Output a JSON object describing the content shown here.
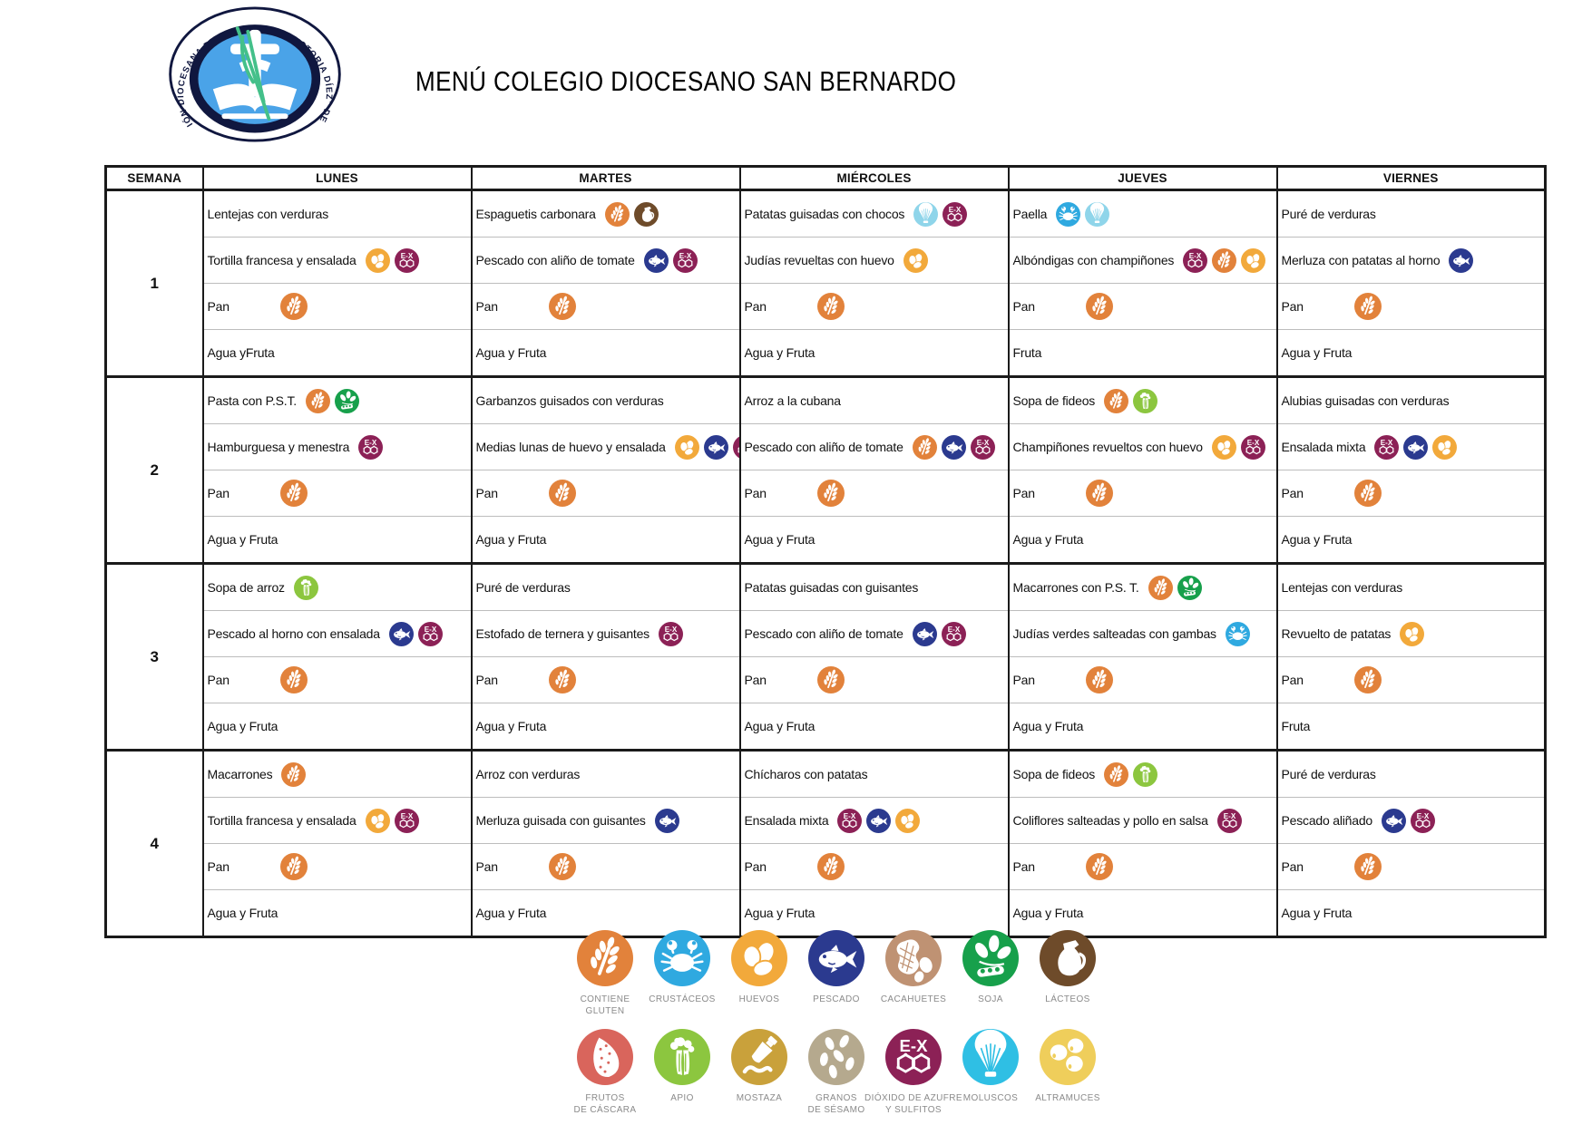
{
  "page": {
    "title": "MENÚ COLEGIO DIOCESANO SAN BERNARDO",
    "logo": {
      "ring_text": "FUNDACIÓN DIOCESANA DE ENSEÑANZA \"VICTORIA DÍEZ\" DE SEVILLA"
    }
  },
  "table": {
    "headers": [
      "SEMANA",
      "LUNES",
      "MARTES",
      "MIÉRCOLES",
      "JUEVES",
      "VIERNES"
    ],
    "weeks": [
      {
        "number": "1",
        "days": [
          {
            "rows": [
              {
                "text": "Lentejas con verduras",
                "icons": []
              },
              {
                "text": "Tortilla francesa y ensalada",
                "icons": [
                  "huevos",
                  "sulfitos"
                ]
              },
              {
                "text": "Pan",
                "icons": [
                  "gluten"
                ]
              },
              {
                "text": "Agua yFruta",
                "icons": []
              }
            ]
          },
          {
            "rows": [
              {
                "text": "Espaguetis carbonara",
                "icons": [
                  "gluten",
                  "lacteos"
                ]
              },
              {
                "text": "Pescado con aliño de tomate",
                "icons": [
                  "pescado",
                  "sulfitos"
                ]
              },
              {
                "text": "Pan",
                "icons": [
                  "gluten"
                ]
              },
              {
                "text": "Agua y Fruta",
                "icons": []
              }
            ]
          },
          {
            "rows": [
              {
                "text": "Patatas guisadas con chocos",
                "icons": [
                  "moluscos",
                  "sulfitos"
                ]
              },
              {
                "text": "Judías revueltas con huevo",
                "icons": [
                  "huevos"
                ]
              },
              {
                "text": "Pan",
                "icons": [
                  "gluten"
                ]
              },
              {
                "text": "Agua y Fruta",
                "icons": []
              }
            ]
          },
          {
            "rows": [
              {
                "text": "Paella",
                "icons": [
                  "crustaceos",
                  "moluscos"
                ]
              },
              {
                "text": "Albóndigas con champiñones",
                "icons": [
                  "sulfitos",
                  "gluten",
                  "huevos"
                ]
              },
              {
                "text": "Pan",
                "icons": [
                  "gluten"
                ]
              },
              {
                "text": "Fruta",
                "icons": []
              }
            ]
          },
          {
            "rows": [
              {
                "text": "Puré de verduras",
                "icons": []
              },
              {
                "text": "Merluza con patatas al horno",
                "icons": [
                  "pescado"
                ]
              },
              {
                "text": "Pan",
                "icons": [
                  "gluten"
                ]
              },
              {
                "text": "Agua y Fruta",
                "icons": []
              }
            ]
          }
        ]
      },
      {
        "number": "2",
        "days": [
          {
            "rows": [
              {
                "text": "Pasta con P.S.T.",
                "icons": [
                  "gluten",
                  "soja"
                ]
              },
              {
                "text": "Hamburguesa y menestra",
                "icons": [
                  "sulfitos"
                ]
              },
              {
                "text": "Pan",
                "icons": [
                  "gluten"
                ]
              },
              {
                "text": "Agua y Fruta",
                "icons": []
              }
            ]
          },
          {
            "rows": [
              {
                "text": "Garbanzos guisados con verduras",
                "icons": []
              },
              {
                "text": "Medias lunas de huevo y ensalada",
                "icons": [
                  "huevos",
                  "pescado",
                  "sulfitos"
                ]
              },
              {
                "text": "Pan",
                "icons": [
                  "gluten"
                ]
              },
              {
                "text": "Agua y Fruta",
                "icons": []
              }
            ]
          },
          {
            "rows": [
              {
                "text": "Arroz a la cubana",
                "icons": []
              },
              {
                "text": "Pescado con aliño de tomate",
                "icons": [
                  "gluten",
                  "pescado",
                  "sulfitos"
                ]
              },
              {
                "text": "Pan",
                "icons": [
                  "gluten"
                ]
              },
              {
                "text": "Agua y Fruta",
                "icons": []
              }
            ]
          },
          {
            "rows": [
              {
                "text": "Sopa de fideos",
                "icons": [
                  "gluten",
                  "apio"
                ]
              },
              {
                "text": "Champiñones revueltos con huevo",
                "icons": [
                  "huevos",
                  "sulfitos"
                ]
              },
              {
                "text": "Pan",
                "icons": [
                  "gluten"
                ]
              },
              {
                "text": "Agua y Fruta",
                "icons": []
              }
            ]
          },
          {
            "rows": [
              {
                "text": "Alubias guisadas con verduras",
                "icons": []
              },
              {
                "text": "Ensalada mixta",
                "icons": [
                  "sulfitos",
                  "pescado",
                  "huevos"
                ]
              },
              {
                "text": "Pan",
                "icons": [
                  "gluten"
                ]
              },
              {
                "text": "Agua y Fruta",
                "icons": []
              }
            ]
          }
        ]
      },
      {
        "number": "3",
        "days": [
          {
            "rows": [
              {
                "text": "Sopa de arroz",
                "icons": [
                  "apio"
                ]
              },
              {
                "text": "Pescado al horno con ensalada",
                "icons": [
                  "pescado",
                  "sulfitos"
                ]
              },
              {
                "text": "Pan",
                "icons": [
                  "gluten"
                ]
              },
              {
                "text": "Agua y Fruta",
                "icons": []
              }
            ]
          },
          {
            "rows": [
              {
                "text": "Puré de verduras",
                "icons": []
              },
              {
                "text": "Estofado de ternera y guisantes",
                "icons": [
                  "sulfitos"
                ]
              },
              {
                "text": "Pan",
                "icons": [
                  "gluten"
                ]
              },
              {
                "text": "Agua y Fruta",
                "icons": []
              }
            ]
          },
          {
            "rows": [
              {
                "text": "Patatas guisadas con guisantes",
                "icons": []
              },
              {
                "text": "Pescado con aliño de tomate",
                "icons": [
                  "pescado",
                  "sulfitos"
                ]
              },
              {
                "text": "Pan",
                "icons": [
                  "gluten"
                ]
              },
              {
                "text": "Agua y Fruta",
                "icons": []
              }
            ]
          },
          {
            "rows": [
              {
                "text": "Macarrones con P.S. T.",
                "icons": [
                  "gluten",
                  "soja"
                ]
              },
              {
                "text": "Judías verdes salteadas con gambas",
                "icons": [
                  "crustaceos"
                ]
              },
              {
                "text": "Pan",
                "icons": [
                  "gluten"
                ]
              },
              {
                "text": "Agua y Fruta",
                "icons": []
              }
            ]
          },
          {
            "rows": [
              {
                "text": "Lentejas con verduras",
                "icons": []
              },
              {
                "text": "Revuelto de patatas",
                "icons": [
                  "huevos"
                ]
              },
              {
                "text": "Pan",
                "icons": [
                  "gluten"
                ]
              },
              {
                "text": "Fruta",
                "icons": []
              }
            ]
          }
        ]
      },
      {
        "number": "4",
        "days": [
          {
            "rows": [
              {
                "text": "Macarrones",
                "icons": [
                  "gluten"
                ]
              },
              {
                "text": "Tortilla francesa y ensalada",
                "icons": [
                  "huevos",
                  "sulfitos"
                ]
              },
              {
                "text": "Pan",
                "icons": [
                  "gluten"
                ]
              },
              {
                "text": "Agua y Fruta",
                "icons": []
              }
            ]
          },
          {
            "rows": [
              {
                "text": "Arroz con verduras",
                "icons": []
              },
              {
                "text": "Merluza guisada con guisantes",
                "icons": [
                  "pescado"
                ]
              },
              {
                "text": "Pan",
                "icons": [
                  "gluten"
                ]
              },
              {
                "text": "Agua y Fruta",
                "icons": []
              }
            ]
          },
          {
            "rows": [
              {
                "text": "Chícharos con patatas",
                "icons": []
              },
              {
                "text": "Ensalada mixta",
                "icons": [
                  "sulfitos",
                  "pescado",
                  "huevos"
                ]
              },
              {
                "text": "Pan",
                "icons": [
                  "gluten"
                ]
              },
              {
                "text": "Agua y Fruta",
                "icons": []
              }
            ]
          },
          {
            "rows": [
              {
                "text": "Sopa de fideos",
                "icons": [
                  "gluten",
                  "apio"
                ]
              },
              {
                "text": "Coliflores salteadas y pollo en salsa",
                "icons": [
                  "sulfitos"
                ]
              },
              {
                "text": "Pan",
                "icons": [
                  "gluten"
                ]
              },
              {
                "text": "Agua y Fruta",
                "icons": []
              }
            ]
          },
          {
            "rows": [
              {
                "text": "Puré de verduras",
                "icons": []
              },
              {
                "text": "Pescado aliñado",
                "icons": [
                  "pescado",
                  "sulfitos"
                ]
              },
              {
                "text": "Pan",
                "icons": [
                  "gluten"
                ]
              },
              {
                "text": "Agua y Fruta",
                "icons": []
              }
            ]
          }
        ]
      }
    ]
  },
  "legend": {
    "rows": [
      [
        {
          "id": "gluten",
          "label": "CONTIENE\nGLUTEN"
        },
        {
          "id": "crustaceos",
          "label": "CRUSTÁCEOS"
        },
        {
          "id": "huevos",
          "label": "HUEVOS"
        },
        {
          "id": "pescado",
          "label": "PESCADO"
        },
        {
          "id": "cacahuetes",
          "label": "CACAHUETES"
        },
        {
          "id": "soja",
          "label": "SOJA"
        },
        {
          "id": "lacteos",
          "label": "LÁCTEOS"
        }
      ],
      [
        {
          "id": "frutos_cascara",
          "label": "FRUTOS\nDE CÁSCARA"
        },
        {
          "id": "apio",
          "label": "APIO"
        },
        {
          "id": "mostaza",
          "label": "MOSTAZA"
        },
        {
          "id": "sesamo",
          "label": "GRANOS\nDE SÉSAMO"
        },
        {
          "id": "sulfitos",
          "label": "DIÓXIDO DE AZUFRE\nY SULFITOS"
        },
        {
          "id": "moluscos",
          "label": "MOLUSCOS"
        },
        {
          "id": "altramuces",
          "label": "ALTRAMUCES"
        }
      ]
    ]
  },
  "colors": {
    "gluten": "#E2823B",
    "crustaceos": "#2FA9E0",
    "huevos": "#F2A93B",
    "pescado": "#2B3A8F",
    "cacahuetes": "#BF9273",
    "soja": "#17A04B",
    "lacteos": "#6E4B2A",
    "frutos_cascara": "#D9655C",
    "apio": "#8CC63F",
    "mostaza": "#C9A13B",
    "sesamo": "#B5A98E",
    "sulfitos": "#8C2156",
    "moluscos": "#2FBFE4",
    "moluscos_cell": "#8FD5EA",
    "altramuces": "#EFCE5B",
    "logo_blue": "#4AA3E8",
    "logo_navy": "#10173F",
    "logo_green": "#44C08A"
  }
}
